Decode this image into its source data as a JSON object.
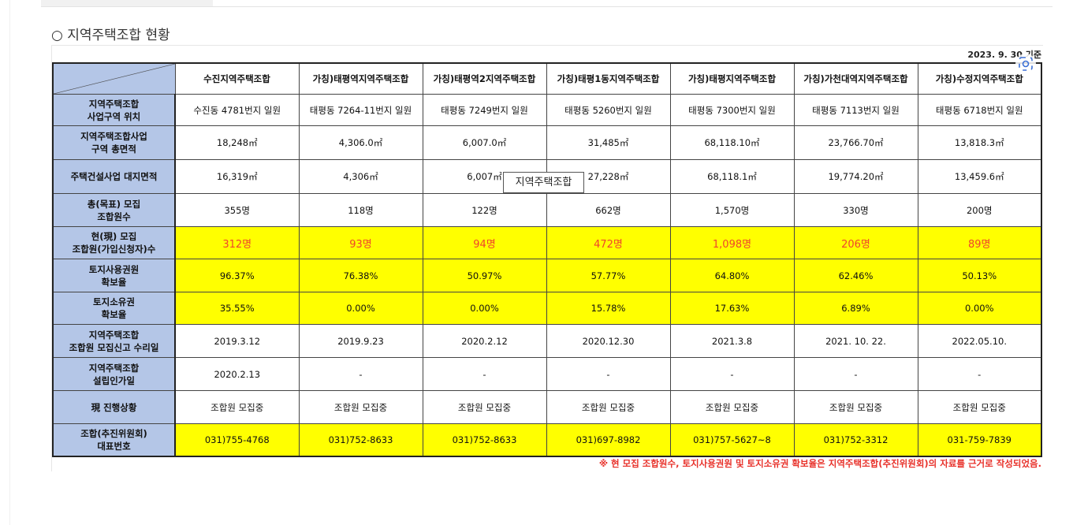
{
  "section_title": "○ 지역주택조합 현황",
  "table": {
    "as_of": "2023. 9. 30 기준",
    "columns": [
      "수진지역주택조합",
      "가칭)태평역지역주택조합",
      "가칭)태평역2지역주택조합",
      "가칭)태평1동지역주택조합",
      "가칭)태평지역주택조합",
      "가칭)가천대역지역주택조합",
      "가칭)수정지역주택조합"
    ],
    "rows": [
      {
        "label": "지역주택조합\n사업구역 위치",
        "cells": [
          "수진동 4781번지 일원",
          "태평동 7264-11번지 일원",
          "태평동 7249번지 일원",
          "태평동 5260번지 일원",
          "태평동 7300번지 일원",
          "태평동 7113번지 일원",
          "태평동 6718번지 일원"
        ]
      },
      {
        "label": "지역주택조합사업\n구역 총면적",
        "cells": [
          "18,248㎡",
          "4,306.0㎡",
          "6,007.0㎡",
          "31,485㎡",
          "68,118.10㎡",
          "23,766.70㎡",
          "13,818.3㎡"
        ]
      },
      {
        "label": "주택건설사업 대지면적",
        "cells": [
          "16,319㎡",
          "4,306㎡",
          "6,007㎡",
          "27,228㎡",
          "68,118.1㎡",
          "19,774.20㎡",
          "13,459.6㎡"
        ]
      },
      {
        "label": "총(목표) 모집\n조합원수",
        "cells": [
          "355명",
          "118명",
          "122명",
          "662명",
          "1,570명",
          "330명",
          "200명"
        ]
      },
      {
        "label": "현(現) 모집\n조합원(가입신청자)수",
        "cells": [
          "312명",
          "93명",
          "94명",
          "472명",
          "1,098명",
          "206명",
          "89명"
        ]
      },
      {
        "label": "토지사용권원\n확보율",
        "cells": [
          "96.37%",
          "76.38%",
          "50.97%",
          "57.77%",
          "64.80%",
          "62.46%",
          "50.13%"
        ]
      },
      {
        "label": "토지소유권\n확보율",
        "cells": [
          "35.55%",
          "0.00%",
          "0.00%",
          "15.78%",
          "17.63%",
          "6.89%",
          "0.00%"
        ]
      },
      {
        "label": "지역주택조합\n조합원 모집신고 수리일",
        "cells": [
          "2019.3.12",
          "2019.9.23",
          "2020.2.12",
          "2020.12.30",
          "2021.3.8",
          "2021. 10. 22.",
          "2022.05.10."
        ]
      },
      {
        "label": "지역주택조합\n설립인가일",
        "cells": [
          "2020.2.13",
          "-",
          "-",
          "-",
          "-",
          "-",
          "-"
        ]
      },
      {
        "label": "現 진행상황",
        "cells": [
          "조합원 모집중",
          "조합원 모집중",
          "조합원 모집중",
          "조합원 모집중",
          "조합원 모집중",
          "조합원 모집중",
          "조합원 모집중"
        ]
      },
      {
        "label": "조합(추진위원회)\n대표번호",
        "cells": [
          "031)755-4768",
          "031)752-8633",
          "031)752-8633",
          "031)697-8982",
          "031)757-5627~8",
          "031)752-3312",
          "031-759-7839"
        ]
      }
    ],
    "footnote": "※ 현 모집 조합원수, 토지사용권원 및 토지소유권 확보율은 지역주택조합(추진위원회)의 자료를 근거로 작성되었음."
  },
  "tooltip": "지역주택조합"
}
